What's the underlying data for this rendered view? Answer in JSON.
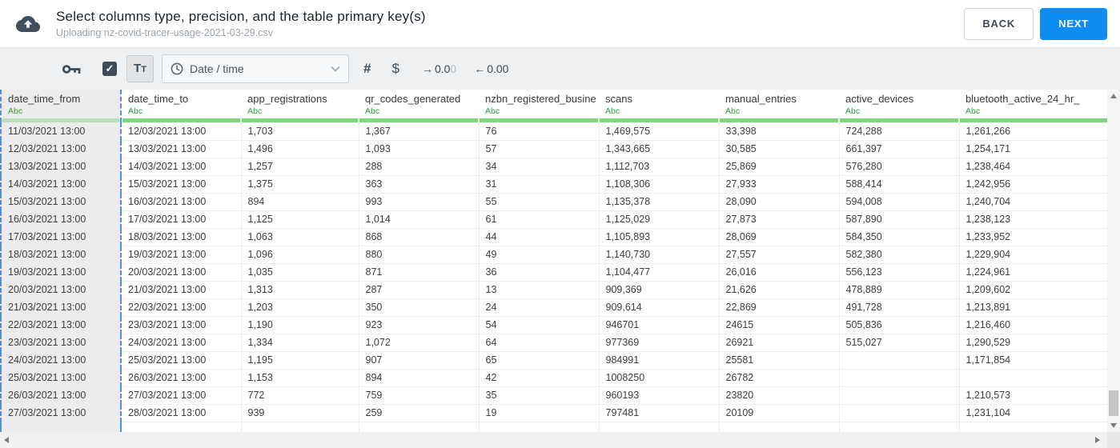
{
  "header": {
    "title": "Select columns type, precision, and the table primary key(s)",
    "subtitle": "Uploading nz-covid-tracer-usage-2021-03-29.csv",
    "back_label": "BACK",
    "next_label": "NEXT"
  },
  "toolbar": {
    "key_checkbox_checked": true,
    "check_glyph": "✓",
    "text_button": {
      "label_main": "T",
      "label_small": "T"
    },
    "type_dropdown_value": "Date / time",
    "hash_label": "#",
    "dollar_label": "$",
    "precision_out": {
      "arrow": "→",
      "value": "0.0",
      "faded": "0"
    },
    "precision_in": {
      "arrow": "←",
      "value": "0.00",
      "faded": ""
    }
  },
  "colors": {
    "accent_blue": "#0d8cf2",
    "toolbar_bg": "#eef0f2",
    "type_green": "#2fa23c",
    "header_bar_green": "#7fd682",
    "selected_column_bg": "#ececec",
    "selection_dash_blue": "#5590d9",
    "icon_slate": "#3d4a58"
  },
  "table": {
    "columns": [
      {
        "name": "date_time_from",
        "type": "Abc",
        "selected": true
      },
      {
        "name": "date_time_to",
        "type": "Abc",
        "selected": false
      },
      {
        "name": "app_registrations",
        "type": "Abc",
        "selected": false
      },
      {
        "name": "qr_codes_generated",
        "type": "Abc",
        "selected": false
      },
      {
        "name": "nzbn_registered_busine",
        "type": "Abc",
        "selected": false
      },
      {
        "name": "scans",
        "type": "Abc",
        "selected": false
      },
      {
        "name": "manual_entries",
        "type": "Abc",
        "selected": false
      },
      {
        "name": "active_devices",
        "type": "Abc",
        "selected": false
      },
      {
        "name": "bluetooth_active_24_hr_",
        "type": "Abc",
        "selected": false
      }
    ],
    "rows": [
      [
        "11/03/2021 13:00",
        "12/03/2021 13:00",
        "1,703",
        "1,367",
        "76",
        "1,469,575",
        "33,398",
        "724,288",
        "1,261,266"
      ],
      [
        "12/03/2021 13:00",
        "13/03/2021 13:00",
        "1,496",
        "1,093",
        "57",
        "1,343,665",
        "30,585",
        "661,397",
        "1,254,171"
      ],
      [
        "13/03/2021 13:00",
        "14/03/2021 13:00",
        "1,257",
        "288",
        "34",
        "1,112,703",
        "25,869",
        "576,280",
        "1,238,464"
      ],
      [
        "14/03/2021 13:00",
        "15/03/2021 13:00",
        "1,375",
        "363",
        "31",
        "1,108,306",
        "27,933",
        "588,414",
        "1,242,956"
      ],
      [
        "15/03/2021 13:00",
        "16/03/2021 13:00",
        "894",
        "993",
        "55",
        "1,135,378",
        "28,090",
        "594,008",
        "1,240,704"
      ],
      [
        "16/03/2021 13:00",
        "17/03/2021 13:00",
        "1,125",
        "1,014",
        "61",
        "1,125,029",
        "27,873",
        "587,890",
        "1,238,123"
      ],
      [
        "17/03/2021 13:00",
        "18/03/2021 13:00",
        "1,063",
        "868",
        "44",
        "1,105,893",
        "28,069",
        "584,350",
        "1,233,952"
      ],
      [
        "18/03/2021 13:00",
        "19/03/2021 13:00",
        "1,096",
        "880",
        "49",
        "1,140,730",
        "27,557",
        "582,380",
        "1,229,904"
      ],
      [
        "19/03/2021 13:00",
        "20/03/2021 13:00",
        "1,035",
        "871",
        "36",
        "1,104,477",
        "26,016",
        "556,123",
        "1,224,961"
      ],
      [
        "20/03/2021 13:00",
        "21/03/2021 13:00",
        "1,313",
        "287",
        "13",
        "909,369",
        "21,626",
        "478,889",
        "1,209,602"
      ],
      [
        "21/03/2021 13:00",
        "22/03/2021 13:00",
        "1,203",
        "350",
        "24",
        "909,614",
        "22,869",
        "491,728",
        "1,213,891"
      ],
      [
        "22/03/2021 13:00",
        "23/03/2021 13:00",
        "1,190",
        "923",
        "54",
        "946701",
        "24615",
        "505,836",
        "1,216,460"
      ],
      [
        "23/03/2021 13:00",
        "24/03/2021 13:00",
        "1,334",
        "1,072",
        "64",
        "977369",
        "26921",
        "515,027",
        "1,290,529"
      ],
      [
        "24/03/2021 13:00",
        "25/03/2021 13:00",
        "1,195",
        "907",
        "65",
        "984991",
        "25581",
        "",
        "1,171,854"
      ],
      [
        "25/03/2021 13:00",
        "26/03/2021 13:00",
        "1,153",
        "894",
        "42",
        "1008250",
        "26782",
        "",
        ""
      ],
      [
        "26/03/2021 13:00",
        "27/03/2021 13:00",
        "772",
        "759",
        "35",
        "960193",
        "23820",
        "",
        "1,210,573"
      ],
      [
        "27/03/2021 13:00",
        "28/03/2021 13:00",
        "939",
        "259",
        "19",
        "797481",
        "20109",
        "",
        "1,231,104"
      ]
    ]
  }
}
